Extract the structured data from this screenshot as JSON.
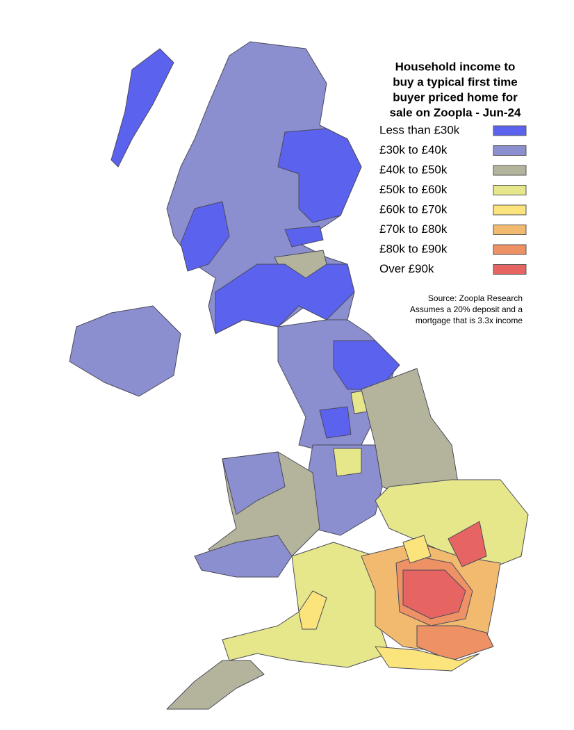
{
  "title": [
    "Household income to",
    "buy a typical first time",
    "buyer priced home for",
    "sale on Zoopla - Jun-24"
  ],
  "legend": [
    {
      "label": "Less than £30k",
      "color": "#5b62ee"
    },
    {
      "label": "£30k to £40k",
      "color": "#8b8ecf"
    },
    {
      "label": "£40k to £50k",
      "color": "#b4b49c"
    },
    {
      "label": "£50k to £60k",
      "color": "#e6e68a"
    },
    {
      "label": "£60k to £70k",
      "color": "#fbe47b"
    },
    {
      "label": "£70k to £80k",
      "color": "#f1ba6e"
    },
    {
      "label": "£80k to £90k",
      "color": "#ee9165"
    },
    {
      "label": "Over £90k",
      "color": "#e66563"
    }
  ],
  "source": [
    "Source: Zoopla Research",
    "Assumes a 20% deposit and a",
    "mortgage that is 3.3x income"
  ]
}
